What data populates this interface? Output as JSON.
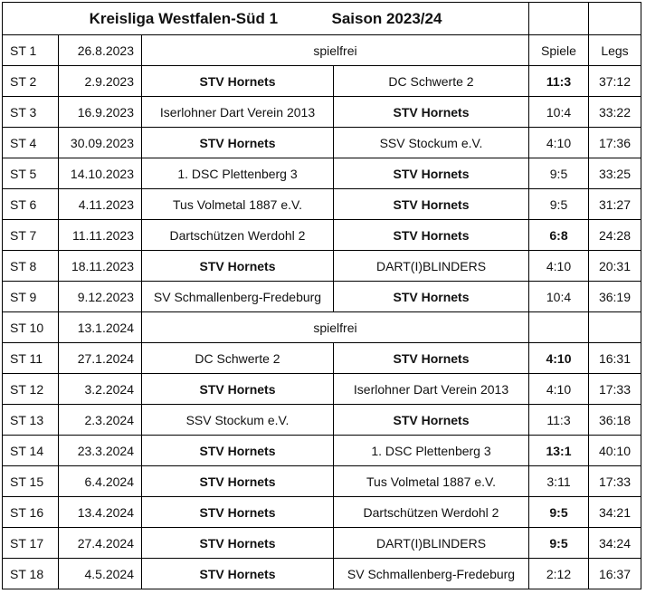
{
  "header": {
    "league": "Kreisliga Westfalen-Süd 1",
    "season": "Saison 2023/24"
  },
  "columns": {
    "spiele": "Spiele",
    "legs": "Legs"
  },
  "team": "STV Hornets",
  "rows": [
    {
      "st": "ST 1",
      "date": "26.8.2023",
      "bye": "spielfrei"
    },
    {
      "st": "ST 2",
      "date": "2.9.2023",
      "home": "STV Hornets",
      "away": "DC Schwerte 2",
      "spiele": "11:3",
      "legs": "37:12",
      "spiele_bold": true
    },
    {
      "st": "ST 3",
      "date": "16.9.2023",
      "home": "Iserlohner Dart Verein 2013",
      "away": "STV Hornets",
      "spiele": "10:4",
      "legs": "33:22"
    },
    {
      "st": "ST 4",
      "date": "30.09.2023",
      "home": "STV Hornets",
      "away": "SSV Stockum e.V.",
      "spiele": "4:10",
      "legs": "17:36"
    },
    {
      "st": "ST 5",
      "date": "14.10.2023",
      "home": "1. DSC Plettenberg 3",
      "away": "STV Hornets",
      "spiele": "9:5",
      "legs": "33:25"
    },
    {
      "st": "ST 6",
      "date": "4.11.2023",
      "home": "Tus Volmetal 1887 e.V.",
      "away": "STV Hornets",
      "spiele": "9:5",
      "legs": "31:27"
    },
    {
      "st": "ST 7",
      "date": "11.11.2023",
      "home": "Dartschützen Werdohl 2",
      "away": "STV Hornets",
      "spiele": "6:8",
      "legs": "24:28",
      "spiele_bold": true
    },
    {
      "st": "ST 8",
      "date": "18.11.2023",
      "home": "STV Hornets",
      "away": "DART(I)BLINDERS",
      "spiele": "4:10",
      "legs": "20:31"
    },
    {
      "st": "ST 9",
      "date": "9.12.2023",
      "home": "SV Schmallenberg-Fredeburg",
      "away": "STV Hornets",
      "spiele": "10:4",
      "legs": "36:19"
    },
    {
      "st": "ST 10",
      "date": "13.1.2024",
      "bye": "spielfrei"
    },
    {
      "st": "ST 11",
      "date": "27.1.2024",
      "home": "DC Schwerte 2",
      "away": "STV Hornets",
      "spiele": "4:10",
      "legs": "16:31",
      "spiele_bold": true
    },
    {
      "st": "ST 12",
      "date": "3.2.2024",
      "home": "STV Hornets",
      "away": "Iserlohner Dart Verein 2013",
      "spiele": "4:10",
      "legs": "17:33"
    },
    {
      "st": "ST 13",
      "date": "2.3.2024",
      "home": "SSV Stockum e.V.",
      "away": "STV Hornets",
      "spiele": "11:3",
      "legs": "36:18"
    },
    {
      "st": "ST 14",
      "date": "23.3.2024",
      "home": "STV Hornets",
      "away": "1. DSC Plettenberg 3",
      "spiele": "13:1",
      "legs": "40:10",
      "spiele_bold": true
    },
    {
      "st": "ST 15",
      "date": "6.4.2024",
      "home": "STV Hornets",
      "away": "Tus Volmetal 1887 e.V.",
      "spiele": "3:11",
      "legs": "17:33"
    },
    {
      "st": "ST 16",
      "date": "13.4.2024",
      "home": "STV Hornets",
      "away": "Dartschützen Werdohl 2",
      "spiele": "9:5",
      "legs": "34:21",
      "spiele_bold": true
    },
    {
      "st": "ST 17",
      "date": "27.4.2024",
      "home": "STV Hornets",
      "away": "DART(I)BLINDERS",
      "spiele": "9:5",
      "legs": "34:24",
      "spiele_bold": true
    },
    {
      "st": "ST 18",
      "date": "4.5.2024",
      "home": "STV Hornets",
      "away": "SV Schmallenberg-Fredeburg",
      "spiele": "2:12",
      "legs": "16:37"
    }
  ]
}
